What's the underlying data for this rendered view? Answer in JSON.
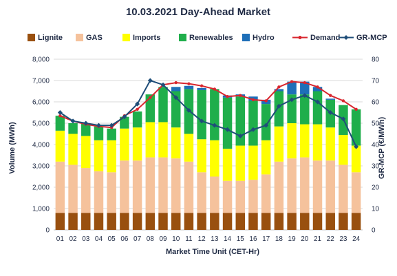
{
  "chart_data": {
    "type": "bar",
    "title": "10.03.2021  Day-Ahead Market",
    "xlabel": "Market Time Unit (CET-Hr)",
    "ylabel": "Volume (MWh)",
    "y2label": "GR-MCP (€/MWh)",
    "ylim": [
      0,
      8000
    ],
    "y2lim": [
      0,
      80
    ],
    "yticks": [
      "0",
      "1,000",
      "2,000",
      "3,000",
      "4,000",
      "5,000",
      "6,000",
      "7,000",
      "8,000"
    ],
    "y2ticks": [
      "0",
      "10",
      "20",
      "30",
      "40",
      "50",
      "60",
      "70",
      "80"
    ],
    "grid": true,
    "legend_position": "top",
    "categories": [
      "01",
      "02",
      "03",
      "04",
      "05",
      "06",
      "07",
      "08",
      "09",
      "10",
      "11",
      "12",
      "13",
      "14",
      "15",
      "16",
      "17",
      "18",
      "19",
      "20",
      "21",
      "22",
      "23",
      "24"
    ],
    "series": [
      {
        "name": "Lignite",
        "kind": "bar",
        "color": "#99500f",
        "values": [
          800,
          800,
          800,
          800,
          800,
          800,
          800,
          800,
          800,
          800,
          800,
          800,
          800,
          800,
          800,
          800,
          800,
          800,
          800,
          800,
          800,
          800,
          800,
          800
        ]
      },
      {
        "name": "GAS",
        "kind": "bar",
        "color": "#f5c29c",
        "values": [
          2400,
          2250,
          2100,
          1950,
          1900,
          2450,
          2450,
          2600,
          2600,
          2550,
          2400,
          1900,
          1700,
          1500,
          1500,
          1550,
          1800,
          2400,
          2550,
          2600,
          2450,
          2450,
          2250,
          1900
        ]
      },
      {
        "name": "Imports",
        "kind": "bar",
        "color": "#ffff00",
        "values": [
          1450,
          1450,
          1500,
          1450,
          1500,
          1500,
          1550,
          1650,
          1650,
          1450,
          1300,
          1550,
          1700,
          1500,
          1650,
          1600,
          1600,
          1650,
          1650,
          1550,
          1700,
          1550,
          1400,
          1250
        ]
      },
      {
        "name": "Renewables",
        "kind": "bar",
        "color": "#1fae4b",
        "values": [
          700,
          500,
          600,
          650,
          550,
          550,
          750,
          1300,
          1650,
          1700,
          2100,
          2300,
          2400,
          2400,
          2300,
          2100,
          1700,
          1650,
          1350,
          1400,
          1550,
          1300,
          1400,
          1700
        ]
      },
      {
        "name": "Hydro",
        "kind": "bar",
        "color": "#1e6fb8",
        "values": [
          0,
          0,
          0,
          0,
          0,
          0,
          0,
          0,
          0,
          200,
          150,
          100,
          0,
          100,
          100,
          200,
          200,
          100,
          600,
          600,
          200,
          50,
          0,
          0
        ]
      },
      {
        "name": "Demand",
        "kind": "line",
        "axis": "left",
        "color": "#d9262e",
        "values": [
          5350,
          5100,
          4950,
          4850,
          4800,
          5350,
          5650,
          6200,
          6800,
          6900,
          6850,
          6750,
          6600,
          6250,
          6300,
          6100,
          6050,
          6700,
          6950,
          6900,
          6700,
          6300,
          6050,
          5650
        ]
      },
      {
        "name": "GR-MCP",
        "kind": "line",
        "axis": "right",
        "color": "#1f4e79",
        "values": [
          55,
          51,
          50,
          49,
          49,
          53,
          59,
          70,
          68,
          62,
          56,
          51,
          49,
          47,
          44,
          47,
          49,
          58,
          61,
          63,
          60,
          55,
          52,
          39
        ]
      }
    ]
  }
}
